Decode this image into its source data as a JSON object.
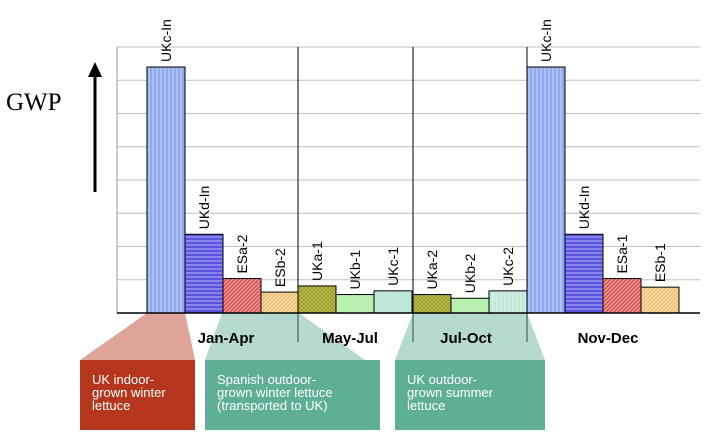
{
  "chart_data": {
    "type": "bar",
    "ylabel": "GWP",
    "yaxis_ticks_labeled": false,
    "grid": true,
    "bars": [
      {
        "label": "UKc-In",
        "value": 100,
        "pattern": "vertical-stripes",
        "color": "#8fa8ee"
      },
      {
        "label": "UKd-In",
        "value": 32,
        "pattern": "horizontal-stripes",
        "color": "#5a55e0"
      },
      {
        "label": "ESa-2",
        "value": 14,
        "pattern": "diagonal-hatch",
        "color": "#e05050"
      },
      {
        "label": "ESb-2",
        "value": 8.5,
        "pattern": "diagonal-hatch",
        "color": "#f0c070"
      },
      {
        "label": "UKa-1",
        "value": 11,
        "pattern": "crosshatch",
        "color": "#c0c048"
      },
      {
        "label": "UKb-1",
        "value": 7.5,
        "pattern": "light-fill",
        "color": "#b8f0b0"
      },
      {
        "label": "UKc-1",
        "value": 9,
        "pattern": "light-fill",
        "color": "#c0e8d8"
      },
      {
        "label": "UKa-2",
        "value": 7.5,
        "pattern": "crosshatch",
        "color": "#c0c048"
      },
      {
        "label": "UKb-2",
        "value": 6,
        "pattern": "light-fill",
        "color": "#b8f0b0"
      },
      {
        "label": "UKc-2",
        "value": 9,
        "pattern": "vertical-stripes",
        "color": "#c0e8d8"
      },
      {
        "label": "UKc-In",
        "value": 100,
        "pattern": "vertical-stripes",
        "color": "#8fa8ee"
      },
      {
        "label": "UKd-In",
        "value": 32,
        "pattern": "horizontal-stripes",
        "color": "#5a55e0"
      },
      {
        "label": "ESa-1",
        "value": 14,
        "pattern": "diagonal-hatch",
        "color": "#e05050"
      },
      {
        "label": "ESb-1",
        "value": 10.5,
        "pattern": "diagonal-hatch",
        "color": "#f0c070"
      }
    ],
    "periods": [
      "Jan-Apr",
      "May-Jul",
      "Jul-Oct",
      "Nov-Dec"
    ],
    "callouts": [
      {
        "text": [
          "UK indoor-",
          "grown winter",
          "lettuce"
        ],
        "color": "#b5361c"
      },
      {
        "text": [
          "Spanish outdoor-",
          "grown winter lettuce",
          "(transported to UK)"
        ],
        "color": "#5fae96"
      },
      {
        "text": [
          "UK outdoor-",
          "grown summer",
          "lettuce"
        ],
        "color": "#5fae96"
      }
    ]
  }
}
